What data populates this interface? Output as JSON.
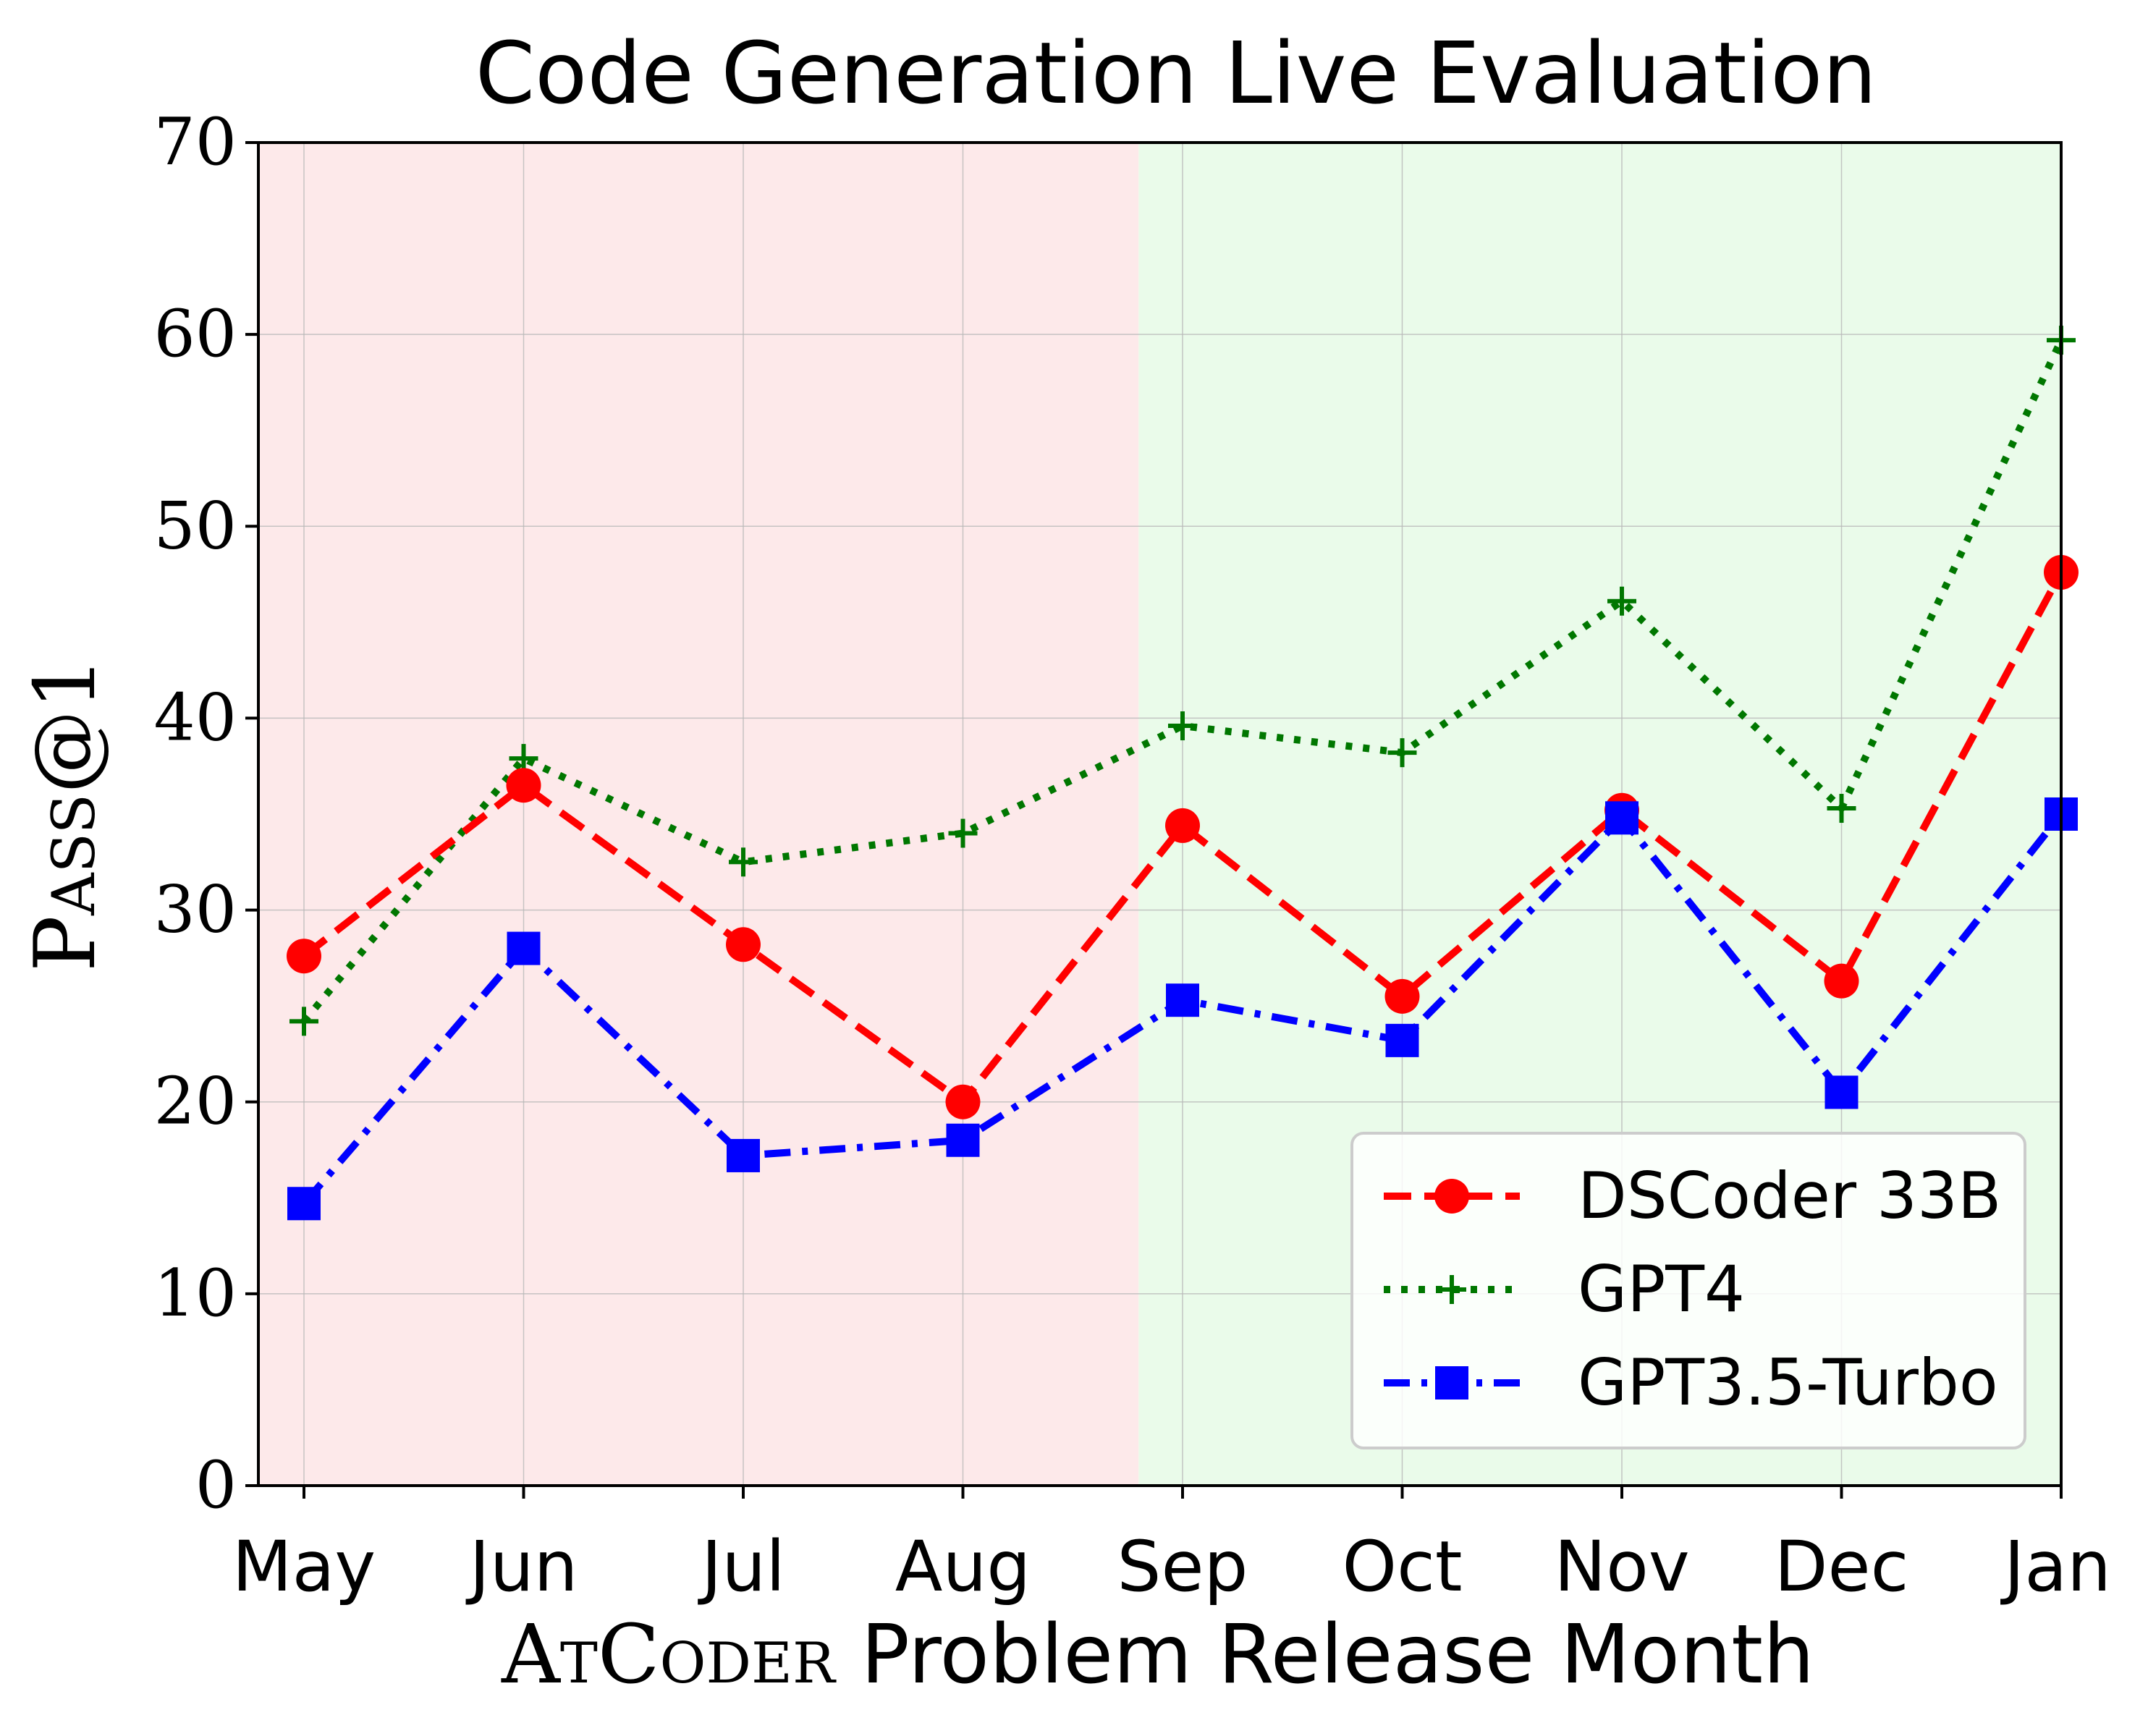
{
  "chart_data": {
    "type": "line",
    "title": "Code Generation Live Evaluation",
    "xlabel": "AtCoder Problem Release Month",
    "xlabel_parts": {
      "smallcaps": "AtCoder",
      "rest": "Problem Release Month"
    },
    "ylabel": "Pass@1",
    "categories": [
      "May",
      "Jun",
      "Jul",
      "Aug",
      "Sep",
      "Oct",
      "Nov",
      "Dec",
      "Jan"
    ],
    "ylim": [
      0,
      70
    ],
    "yticks": [
      "0",
      "10",
      "20",
      "30",
      "40",
      "50",
      "60",
      "70"
    ],
    "grid": true,
    "legend_position": "lower-right",
    "shaded_regions": [
      {
        "name": "before-cutoff",
        "from": "May",
        "to": "Aug",
        "color": "#fde9ea"
      },
      {
        "name": "after-cutoff",
        "from": "Sep",
        "to": "Jan",
        "color": "#eafbea"
      }
    ],
    "series": [
      {
        "name": "DSCoder 33B",
        "color": "#ff0000",
        "marker": "circle",
        "linestyle": "dashed",
        "values": [
          27.6,
          36.5,
          28.2,
          20.0,
          34.4,
          25.5,
          35.2,
          26.3,
          47.6
        ]
      },
      {
        "name": "GPT4",
        "color": "#007700",
        "marker": "plus",
        "linestyle": "dotted",
        "values": [
          24.2,
          37.9,
          32.5,
          34.0,
          39.6,
          38.2,
          46.1,
          35.3,
          59.7
        ]
      },
      {
        "name": "GPT3.5-Turbo",
        "color": "#0000ff",
        "marker": "square",
        "linestyle": "dashdot",
        "values": [
          14.7,
          28.0,
          17.2,
          18.0,
          25.3,
          23.2,
          34.8,
          20.5,
          35.0
        ]
      }
    ]
  }
}
